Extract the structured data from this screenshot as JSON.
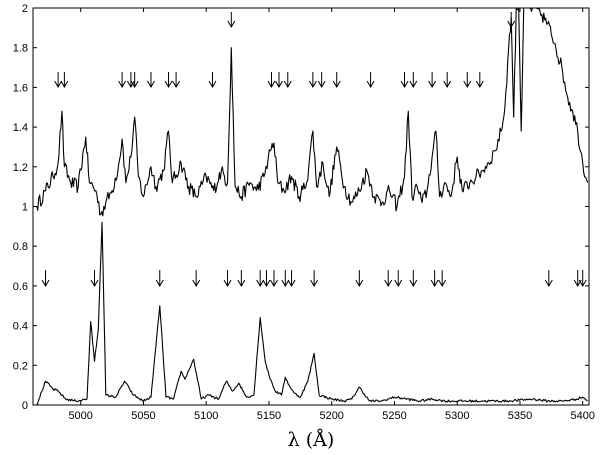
{
  "chart_data": {
    "type": "line",
    "title": "",
    "xlabel": "λ (Å)",
    "ylabel": "",
    "xlim": [
      4962,
      5405
    ],
    "ylim": [
      0,
      2
    ],
    "grid": false,
    "x_ticks": [
      5000,
      5050,
      5100,
      5150,
      5200,
      5250,
      5300,
      5350,
      5400
    ],
    "y_ticks": [
      0,
      0.2,
      0.4,
      0.6,
      0.8,
      1,
      1.2,
      1.4,
      1.6,
      1.8,
      2
    ],
    "x_tick_labels": [
      "5000",
      "5050",
      "5100",
      "5150",
      "5200",
      "5250",
      "5300",
      "5350",
      "5400"
    ],
    "y_tick_labels": [
      "0",
      "0.2",
      "0.4",
      "0.6",
      "0.8",
      "1",
      "1.2",
      "1.4",
      "1.6",
      "1.8",
      "2"
    ],
    "series": [
      {
        "id": "upper",
        "color": "#000000",
        "baseline": 1.0,
        "points": [
          [
            4965,
            1.0
          ],
          [
            4972,
            1.08
          ],
          [
            4978,
            1.15
          ],
          [
            4982,
            1.22
          ],
          [
            4985,
            1.48
          ],
          [
            4987,
            1.2
          ],
          [
            4992,
            1.12
          ],
          [
            4998,
            1.1
          ],
          [
            5004,
            1.35
          ],
          [
            5007,
            1.12
          ],
          [
            5012,
            1.08
          ],
          [
            5016,
            0.96
          ],
          [
            5020,
            1.02
          ],
          [
            5025,
            1.08
          ],
          [
            5030,
            1.2
          ],
          [
            5033,
            1.34
          ],
          [
            5036,
            1.12
          ],
          [
            5040,
            1.25
          ],
          [
            5043,
            1.45
          ],
          [
            5046,
            1.15
          ],
          [
            5050,
            1.05
          ],
          [
            5056,
            1.2
          ],
          [
            5060,
            1.1
          ],
          [
            5066,
            1.18
          ],
          [
            5070,
            1.38
          ],
          [
            5073,
            1.12
          ],
          [
            5080,
            1.22
          ],
          [
            5086,
            1.1
          ],
          [
            5092,
            1.05
          ],
          [
            5100,
            1.15
          ],
          [
            5106,
            1.08
          ],
          [
            5112,
            1.18
          ],
          [
            5117,
            1.12
          ],
          [
            5120,
            1.8
          ],
          [
            5123,
            1.1
          ],
          [
            5128,
            1.05
          ],
          [
            5135,
            1.12
          ],
          [
            5140,
            1.08
          ],
          [
            5146,
            1.15
          ],
          [
            5151,
            1.28
          ],
          [
            5154,
            1.32
          ],
          [
            5157,
            1.12
          ],
          [
            5162,
            1.08
          ],
          [
            5168,
            1.15
          ],
          [
            5174,
            1.05
          ],
          [
            5180,
            1.12
          ],
          [
            5185,
            1.38
          ],
          [
            5188,
            1.1
          ],
          [
            5193,
            1.22
          ],
          [
            5198,
            1.05
          ],
          [
            5204,
            1.3
          ],
          [
            5210,
            1.1
          ],
          [
            5216,
            1.02
          ],
          [
            5222,
            1.08
          ],
          [
            5228,
            1.18
          ],
          [
            5234,
            1.05
          ],
          [
            5240,
            1.02
          ],
          [
            5246,
            1.08
          ],
          [
            5252,
            1.0
          ],
          [
            5258,
            1.15
          ],
          [
            5261,
            1.48
          ],
          [
            5264,
            1.05
          ],
          [
            5268,
            1.1
          ],
          [
            5272,
            1.02
          ],
          [
            5276,
            1.08
          ],
          [
            5280,
            1.25
          ],
          [
            5283,
            1.38
          ],
          [
            5286,
            1.05
          ],
          [
            5290,
            1.12
          ],
          [
            5295,
            1.05
          ],
          [
            5300,
            1.25
          ],
          [
            5304,
            1.08
          ],
          [
            5310,
            1.12
          ],
          [
            5315,
            1.15
          ],
          [
            5320,
            1.18
          ],
          [
            5325,
            1.22
          ],
          [
            5330,
            1.28
          ],
          [
            5335,
            1.38
          ],
          [
            5338,
            1.5
          ],
          [
            5341,
            1.8
          ],
          [
            5343,
            1.95
          ],
          [
            5345,
            1.45
          ],
          [
            5347,
            2.0
          ],
          [
            5349,
            2.0
          ],
          [
            5351,
            1.38
          ],
          [
            5353,
            2.0
          ],
          [
            5360,
            2.0
          ],
          [
            5366,
            1.98
          ],
          [
            5372,
            1.92
          ],
          [
            5378,
            1.82
          ],
          [
            5384,
            1.68
          ],
          [
            5388,
            1.55
          ],
          [
            5392,
            1.48
          ],
          [
            5396,
            1.38
          ],
          [
            5400,
            1.22
          ],
          [
            5404,
            1.12
          ]
        ]
      },
      {
        "id": "lower",
        "color": "#000000",
        "baseline": 0.0,
        "points": [
          [
            4965,
            0.0
          ],
          [
            4972,
            0.12
          ],
          [
            4978,
            0.08
          ],
          [
            4982,
            0.07
          ],
          [
            4988,
            0.03
          ],
          [
            4996,
            0.02
          ],
          [
            5005,
            0.03
          ],
          [
            5008,
            0.42
          ],
          [
            5011,
            0.22
          ],
          [
            5014,
            0.38
          ],
          [
            5017,
            0.92
          ],
          [
            5020,
            0.05
          ],
          [
            5028,
            0.04
          ],
          [
            5035,
            0.12
          ],
          [
            5042,
            0.05
          ],
          [
            5050,
            0.02
          ],
          [
            5056,
            0.04
          ],
          [
            5063,
            0.5
          ],
          [
            5068,
            0.04
          ],
          [
            5074,
            0.03
          ],
          [
            5080,
            0.17
          ],
          [
            5083,
            0.13
          ],
          [
            5090,
            0.23
          ],
          [
            5096,
            0.03
          ],
          [
            5102,
            0.05
          ],
          [
            5110,
            0.03
          ],
          [
            5116,
            0.12
          ],
          [
            5121,
            0.07
          ],
          [
            5126,
            0.11
          ],
          [
            5132,
            0.04
          ],
          [
            5138,
            0.05
          ],
          [
            5143,
            0.44
          ],
          [
            5147,
            0.22
          ],
          [
            5150,
            0.15
          ],
          [
            5155,
            0.07
          ],
          [
            5160,
            0.05
          ],
          [
            5163,
            0.14
          ],
          [
            5166,
            0.1
          ],
          [
            5170,
            0.06
          ],
          [
            5175,
            0.04
          ],
          [
            5181,
            0.12
          ],
          [
            5186,
            0.26
          ],
          [
            5190,
            0.05
          ],
          [
            5200,
            0.03
          ],
          [
            5210,
            0.02
          ],
          [
            5216,
            0.03
          ],
          [
            5222,
            0.09
          ],
          [
            5230,
            0.02
          ],
          [
            5240,
            0.02
          ],
          [
            5250,
            0.04
          ],
          [
            5260,
            0.03
          ],
          [
            5270,
            0.02
          ],
          [
            5280,
            0.03
          ],
          [
            5290,
            0.02
          ],
          [
            5300,
            0.02
          ],
          [
            5320,
            0.02
          ],
          [
            5340,
            0.02
          ],
          [
            5360,
            0.03
          ],
          [
            5372,
            0.02
          ],
          [
            5385,
            0.02
          ],
          [
            5395,
            0.03
          ],
          [
            5400,
            0.04
          ],
          [
            5404,
            0.02
          ]
        ]
      }
    ],
    "arrows_upper": [
      4982,
      4987,
      5033,
      5040,
      5043,
      5056,
      5070,
      5076,
      5105,
      5120,
      5152,
      5158,
      5165,
      5185,
      5192,
      5204,
      5231,
      5258,
      5265,
      5280,
      5292,
      5308,
      5318,
      5343
    ],
    "arrows_lower": [
      4972,
      5011,
      5063,
      5092,
      5117,
      5128,
      5143,
      5148,
      5154,
      5163,
      5168,
      5186,
      5222,
      5245,
      5253,
      5265,
      5282,
      5288,
      5373,
      5396,
      5400
    ]
  }
}
